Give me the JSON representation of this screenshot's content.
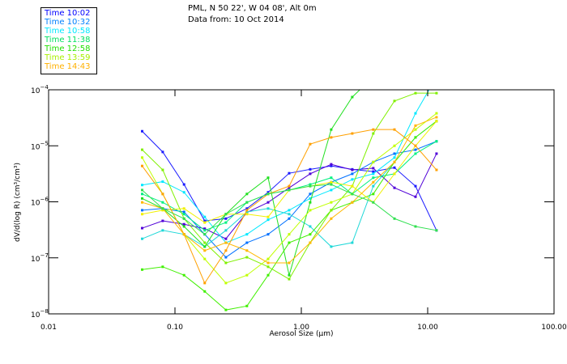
{
  "header": {
    "location": "PML, N 50 22', W 04 08', Alt 0m",
    "date": "Data from: 10 Oct 2014"
  },
  "legend": [
    {
      "label": "Time 10:02",
      "color": "#0000ff"
    },
    {
      "label": "Time 10:32",
      "color": "#0080ff"
    },
    {
      "label": "Time 10:58",
      "color": "#00e8ff"
    },
    {
      "label": "Time 11:38",
      "color": "#00e060"
    },
    {
      "label": "Time 12:58",
      "color": "#20e000"
    },
    {
      "label": "Time 13:59",
      "color": "#a8f000"
    },
    {
      "label": "Time 14:43",
      "color": "#ffb000"
    }
  ],
  "chart_data": {
    "type": "line",
    "xscale": "log",
    "yscale": "log",
    "xlabel": "Aerosol Size (µm)",
    "ylabel": "dV/d(log R) (cm³/cm³)",
    "xlim": [
      0.01,
      100
    ],
    "ylim": [
      1e-08,
      0.0001
    ],
    "xticks": [
      "0.01",
      "0.10",
      "1.00",
      "10.00",
      "100.00"
    ],
    "yticks": [
      {
        "base": "10",
        "exp": "−4"
      },
      {
        "base": "10",
        "exp": "−5"
      },
      {
        "base": "10",
        "exp": "−6"
      },
      {
        "base": "10",
        "exp": "−7"
      },
      {
        "base": "10",
        "exp": "−8"
      }
    ],
    "x": [
      0.055,
      0.08,
      0.118,
      0.172,
      0.253,
      0.371,
      0.546,
      0.801,
      1.175,
      1.724,
      2.53,
      3.71,
      5.46,
      8.01,
      11.75
    ],
    "series_log10_note": "y values given as log10(dV/dlogR)",
    "series": [
      {
        "color": "#1a1aff",
        "log10": [
          -4.74,
          -5.11,
          -5.69,
          -6.34,
          -6.3,
          -6.12,
          -5.83,
          -5.49,
          -5.42,
          -5.36,
          -5.42,
          -5.46,
          -5.39,
          -5.72,
          -6.51
        ]
      },
      {
        "color": "#5000d8",
        "log10": [
          -6.47,
          -6.34,
          -6.4,
          -6.48,
          -6.66,
          -6.19,
          -6.01,
          -5.75,
          -5.5,
          -5.33,
          -5.43,
          -5.4,
          -5.75,
          -5.91,
          -5.14
        ]
      },
      {
        "color": "#0070ff",
        "log10": [
          -6.15,
          -6.12,
          -6.18,
          -6.58,
          -6.99,
          -6.73,
          -6.58,
          -6.3,
          -5.86,
          -5.65,
          -5.5,
          -5.29,
          -5.14,
          -5.07,
          -4.92
        ]
      },
      {
        "color": "#00e8ff",
        "log10": [
          -5.7,
          -5.64,
          -5.83,
          -6.27,
          -6.73,
          -6.58,
          -6.32,
          -6.15,
          -5.94,
          -5.79,
          -5.6,
          -5.5,
          -5.21,
          -4.42,
          -3.77
        ]
      },
      {
        "color": "#20d8d8",
        "log10": [
          -6.66,
          -6.51,
          -6.58,
          -6.8,
          -6.51,
          -6.18,
          -6.12,
          -6.22,
          -6.44,
          -6.8,
          -6.73,
          -5.72,
          -5.29,
          -4.85,
          -4.56
        ]
      },
      {
        "color": "#00f080",
        "log10": [
          -5.86,
          -6.01,
          -6.22,
          -6.51,
          -6.37,
          -6.01,
          -5.86,
          -5.79,
          -5.69,
          -5.57,
          -5.86,
          -5.57,
          -5.5,
          -5.14,
          -4.92
        ]
      },
      {
        "color": "#20e020",
        "log10": [
          -5.94,
          -6.12,
          -6.44,
          -6.8,
          -6.22,
          -5.86,
          -5.57,
          -7.31,
          -6.01,
          -4.71,
          -4.13,
          -3.77,
          -3.55,
          -3.41,
          -3.41
        ]
      },
      {
        "color": "#40f000",
        "log10": [
          -7.21,
          -7.16,
          -7.31,
          -7.6,
          -7.93,
          -7.86,
          -7.31,
          -6.73,
          -6.58,
          -6.15,
          -6.01,
          -5.86,
          -5.29,
          -4.85,
          -4.56
        ]
      },
      {
        "color": "#80f000",
        "log10": [
          -5.07,
          -5.43,
          -6.3,
          -6.73,
          -7.09,
          -6.99,
          -7.16,
          -7.38,
          -6.73,
          -6.15,
          -5.72,
          -4.78,
          -4.2,
          -4.06,
          -4.06
        ]
      },
      {
        "color": "#c0ff00",
        "log10": [
          -5.21,
          -5.86,
          -6.58,
          -7.02,
          -7.45,
          -7.31,
          -7.02,
          -6.58,
          -6.15,
          -6.01,
          -5.86,
          -5.29,
          -5.0,
          -4.71,
          -4.42
        ]
      },
      {
        "color": "#f0f000",
        "log10": [
          -6.22,
          -6.15,
          -6.12,
          -6.37,
          -6.22,
          -6.22,
          -6.27,
          -5.79,
          -5.72,
          -5.65,
          -5.72,
          -6.01,
          -5.5,
          -5.0,
          -4.56
        ]
      },
      {
        "color": "#ffa000",
        "log10": [
          -5.36,
          -5.86,
          -6.58,
          -7.45,
          -6.87,
          -6.15,
          -5.86,
          -5.72,
          -4.97,
          -4.85,
          -4.78,
          -4.71,
          -4.71,
          -5.0,
          -5.43
        ]
      },
      {
        "color": "#ffb800",
        "log10": [
          -6.01,
          -6.12,
          -6.58,
          -6.87,
          -6.73,
          -6.87,
          -7.09,
          -7.09,
          -6.73,
          -6.3,
          -6.01,
          -5.65,
          -5.29,
          -4.64,
          -4.49
        ]
      },
      {
        "color": "#30e050",
        "log10": [
          -5.79,
          -6.12,
          -6.3,
          -6.58,
          -6.22,
          -6.01,
          -5.86,
          -5.79,
          -5.72,
          -5.69,
          -5.86,
          -6.01,
          -6.3,
          -6.44,
          -6.51
        ]
      }
    ]
  }
}
